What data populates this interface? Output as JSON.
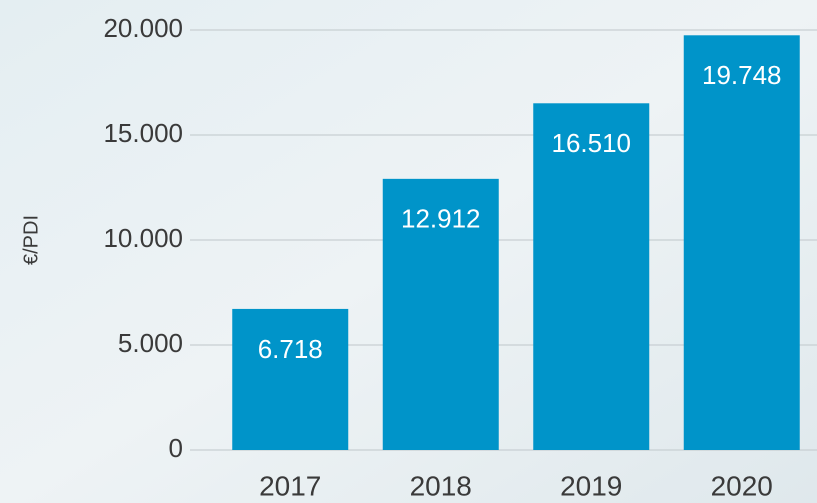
{
  "chart_data": {
    "type": "bar",
    "y_label": "€/PDI",
    "categories": [
      "2017",
      "2018",
      "2019",
      "2020"
    ],
    "values": [
      6718,
      12912,
      16510,
      19748
    ],
    "value_labels": [
      "6.718",
      "12.912",
      "16.510",
      "19.748"
    ],
    "color": "#0094c9",
    "ylim": [
      0,
      20000
    ],
    "yticks": [
      0,
      {
        "value": 5000,
        "label": "5.000"
      },
      {
        "value": 10000,
        "label": "10.000"
      },
      {
        "value": 15000,
        "label": "15.000"
      },
      {
        "value": 20000,
        "label": "20.000"
      }
    ],
    "grid": true
  }
}
